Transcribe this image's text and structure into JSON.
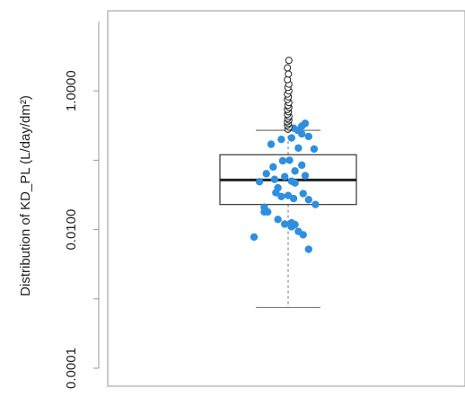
{
  "chart_data": {
    "type": "boxplot",
    "ylabel": "Distribution of KD_PL  (L/day/dm²)",
    "yscale": "log10",
    "ylim": [
      0.0001,
      10.0
    ],
    "yticks": [
      0.0001,
      0.001,
      0.01,
      0.1,
      1.0
    ],
    "yticklabels": [
      "0.0001",
      "",
      "0.0100",
      "",
      "1.0000"
    ],
    "xticks": [],
    "colors": {
      "points": "#2f8fdf",
      "box_stroke": "#333333",
      "median": "#222222",
      "whisker": "#777777",
      "outliers": "#222222",
      "frame": "#999999"
    },
    "box": {
      "min": 0.00075,
      "q1": 0.023,
      "median": 0.052,
      "q3": 0.12,
      "max": 0.27
    },
    "outliers": [
      0.28,
      0.3,
      0.32,
      0.34,
      0.36,
      0.38,
      0.4,
      0.43,
      0.46,
      0.5,
      0.54,
      0.58,
      0.62,
      0.68,
      0.75,
      0.82,
      0.9,
      1.0,
      1.12,
      1.25,
      1.45,
      1.75,
      2.15,
      2.75
    ],
    "points": [
      {
        "x": -0.25,
        "y": 0.17
      },
      {
        "x": -0.35,
        "y": 0.021
      },
      {
        "x": -0.3,
        "y": 0.018
      },
      {
        "x": -0.5,
        "y": 0.0078
      },
      {
        "x": -0.15,
        "y": 0.014
      },
      {
        "x": -0.05,
        "y": 0.012
      },
      {
        "x": 0.05,
        "y": 0.0125
      },
      {
        "x": 0.1,
        "y": 0.0118
      },
      {
        "x": 0.15,
        "y": 0.0094
      },
      {
        "x": 0.05,
        "y": 0.011
      },
      {
        "x": 0.22,
        "y": 0.0084
      },
      {
        "x": 0.3,
        "y": 0.0052
      },
      {
        "x": -0.18,
        "y": 0.034
      },
      {
        "x": -0.1,
        "y": 0.03
      },
      {
        "x": 0.0,
        "y": 0.031
      },
      {
        "x": 0.08,
        "y": 0.028
      },
      {
        "x": 0.22,
        "y": 0.033
      },
      {
        "x": 0.3,
        "y": 0.027
      },
      {
        "x": 0.4,
        "y": 0.023
      },
      {
        "x": -0.42,
        "y": 0.049
      },
      {
        "x": -0.32,
        "y": 0.064
      },
      {
        "x": -0.2,
        "y": 0.053
      },
      {
        "x": -0.05,
        "y": 0.058
      },
      {
        "x": 0.05,
        "y": 0.05
      },
      {
        "x": 0.1,
        "y": 0.047
      },
      {
        "x": 0.25,
        "y": 0.06
      },
      {
        "x": -0.22,
        "y": 0.08
      },
      {
        "x": -0.08,
        "y": 0.098
      },
      {
        "x": 0.02,
        "y": 0.1
      },
      {
        "x": 0.1,
        "y": 0.07
      },
      {
        "x": 0.2,
        "y": 0.085
      },
      {
        "x": 0.38,
        "y": 0.145
      },
      {
        "x": 0.15,
        "y": 0.15
      },
      {
        "x": -0.1,
        "y": 0.2
      },
      {
        "x": 0.05,
        "y": 0.21
      },
      {
        "x": 0.2,
        "y": 0.24
      },
      {
        "x": 0.14,
        "y": 0.27
      },
      {
        "x": 0.3,
        "y": 0.22
      },
      {
        "x": 0.2,
        "y": 0.31
      },
      {
        "x": 0.08,
        "y": 0.29
      },
      {
        "x": 0.25,
        "y": 0.34
      },
      {
        "x": 0.0,
        "y": 0.35
      },
      {
        "x": -0.35,
        "y": 0.018
      },
      {
        "x": -0.15,
        "y": 0.04
      }
    ]
  }
}
